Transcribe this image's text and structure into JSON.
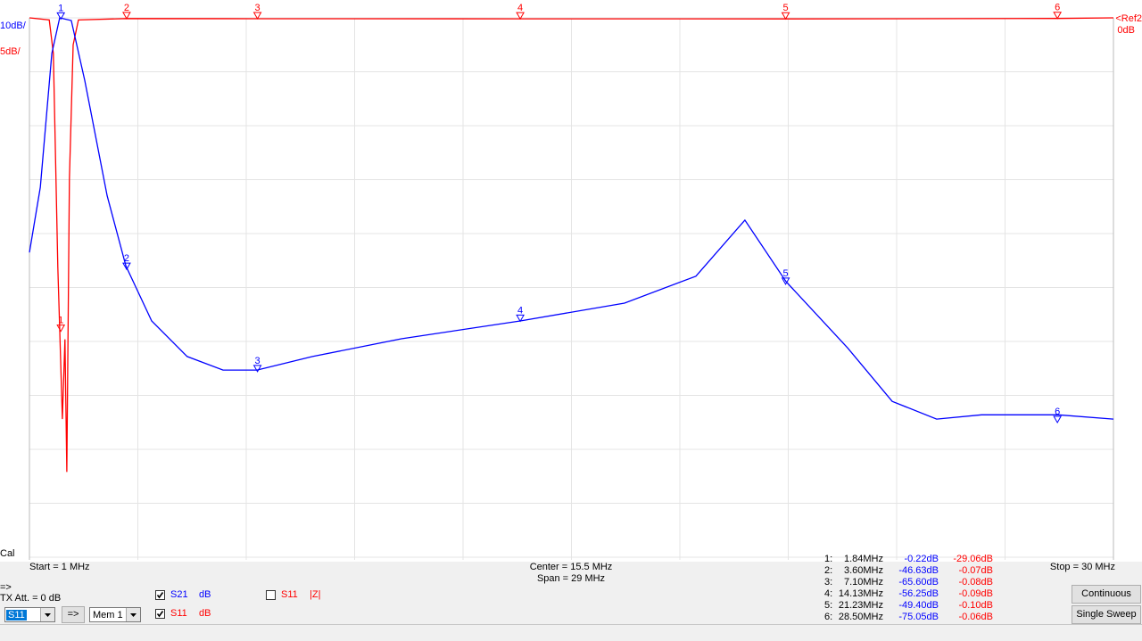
{
  "plot": {
    "scale_s21": "10dB/",
    "scale_s11": "5dB/",
    "ref_label": "<Ref2",
    "ref_value": "0dB",
    "cal": "Cal",
    "start": "Start = 1 MHz",
    "center": "Center = 15.5 MHz",
    "span": "Span = 29 MHz",
    "stop": "Stop = 30 MHz",
    "xlim": [
      1,
      30
    ],
    "traces": [
      {
        "color": "#0000ff",
        "ylim": [
          -100,
          0
        ],
        "x": [
          1,
          1.29,
          1.6,
          1.81,
          2.12,
          2.48,
          3.08,
          3.58,
          4.27,
          5.22,
          6.18,
          7.09,
          8.57,
          10.95,
          14.13,
          16.92,
          18.83,
          20.14,
          21.24,
          22.89,
          24.08,
          25.27,
          26.47,
          28.52,
          30
        ],
        "values": [
          -43.5,
          -31.4,
          -6.6,
          0,
          -0.5,
          -11.6,
          -33,
          -46,
          -56.2,
          -62.8,
          -65.3,
          -65.3,
          -62.8,
          -59.5,
          -56.2,
          -52.9,
          -47.9,
          -37.5,
          -48.9,
          -61.2,
          -71.1,
          -74.4,
          -73.6,
          -73.6,
          -74.4
        ]
      },
      {
        "color": "#ff0000",
        "ylim": [
          -50,
          0
        ],
        "x": [
          1,
          1.53,
          1.64,
          1.76,
          1.81,
          1.88,
          1.95,
          2.0,
          2.07,
          2.17,
          2.31,
          3.6,
          7.1,
          14.13,
          21.23,
          28.5,
          30
        ],
        "values": [
          0,
          -0.2,
          -3.3,
          -23.1,
          -28.8,
          -37.2,
          -29.8,
          -42.1,
          -14.9,
          -2.5,
          -0.2,
          -0.07,
          -0.08,
          -0.09,
          -0.1,
          -0.06,
          0
        ]
      }
    ],
    "markers": [
      {
        "label": "1",
        "row_label": "1:",
        "freq": {
          "value": 1.84,
          "label": "1.84MHz"
        },
        "s21": {
          "value": -0.22,
          "label": "-0.22dB"
        },
        "s11": {
          "value": -29.06,
          "label": "-29.06dB"
        }
      },
      {
        "label": "2",
        "row_label": "2:",
        "freq": {
          "value": 3.6,
          "label": "3.60MHz"
        },
        "s21": {
          "value": -46.63,
          "label": "-46.63dB"
        },
        "s11": {
          "value": -0.07,
          "label": "-0.07dB"
        }
      },
      {
        "label": "3",
        "row_label": "3:",
        "freq": {
          "value": 7.1,
          "label": "7.10MHz"
        },
        "s21": {
          "value": -65.6,
          "label": "-65.60dB"
        },
        "s11": {
          "value": -0.08,
          "label": "-0.08dB"
        }
      },
      {
        "label": "4",
        "row_label": "4:",
        "freq": {
          "value": 14.13,
          "label": "14.13MHz"
        },
        "s21": {
          "value": -56.25,
          "label": "-56.25dB"
        },
        "s11": {
          "value": -0.09,
          "label": "-0.09dB"
        }
      },
      {
        "label": "5",
        "row_label": "5:",
        "freq": {
          "value": 21.23,
          "label": "21.23MHz"
        },
        "s21": {
          "value": -49.4,
          "label": "-49.40dB"
        },
        "s11": {
          "value": -0.1,
          "label": "-0.10dB"
        }
      },
      {
        "label": "6",
        "row_label": "6:",
        "freq": {
          "value": 28.5,
          "label": "28.50MHz"
        },
        "s21": {
          "value": -75.05,
          "label": "-75.05dB"
        },
        "s11": {
          "value": -0.06,
          "label": "-0.06dB"
        }
      }
    ]
  },
  "controls": {
    "arrow_label": "=>",
    "tx_att": "TX Att.  = 0 dB",
    "channel_select": "S11",
    "arrow_button": "=>",
    "memory_select": "Mem 1",
    "checkboxes": [
      {
        "label": "S21",
        "unit": "dB",
        "checked": true
      },
      {
        "label": "S11",
        "unit": "dB",
        "checked": true
      },
      {
        "label": "S11",
        "unit": "|Z|",
        "checked": false
      }
    ],
    "buttons": [
      "Continuous",
      "Single Sweep"
    ]
  }
}
